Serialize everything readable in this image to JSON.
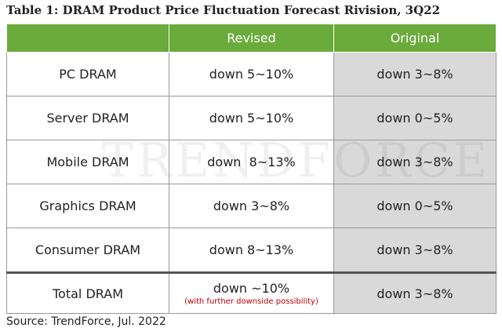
{
  "title": "Table 1: DRAM Product Price Fluctuation Forecast Rivision, 3Q22",
  "watermark": "TRENDFORCE",
  "table": {
    "header": [
      "Revised",
      "Original"
    ],
    "rows": [
      [
        "PC DRAM",
        "down 5~10%",
        "down 3~8%"
      ],
      [
        "Server DRAM",
        "down 5~10%",
        "down 0~5%"
      ],
      [
        "Mobile DRAM",
        "down  8~13%",
        "down 3~8%"
      ],
      [
        "Graphics DRAM",
        "down 3~8%",
        "down 0~5%"
      ],
      [
        "Consumer DRAM",
        "down 8~13%",
        "down 3~8%"
      ],
      [
        "Total DRAM",
        "down ~10%",
        "down 3~8%"
      ]
    ],
    "note": "(with further downside possibility)"
  },
  "source": "Source: TrendForce, Jul. 2022"
}
